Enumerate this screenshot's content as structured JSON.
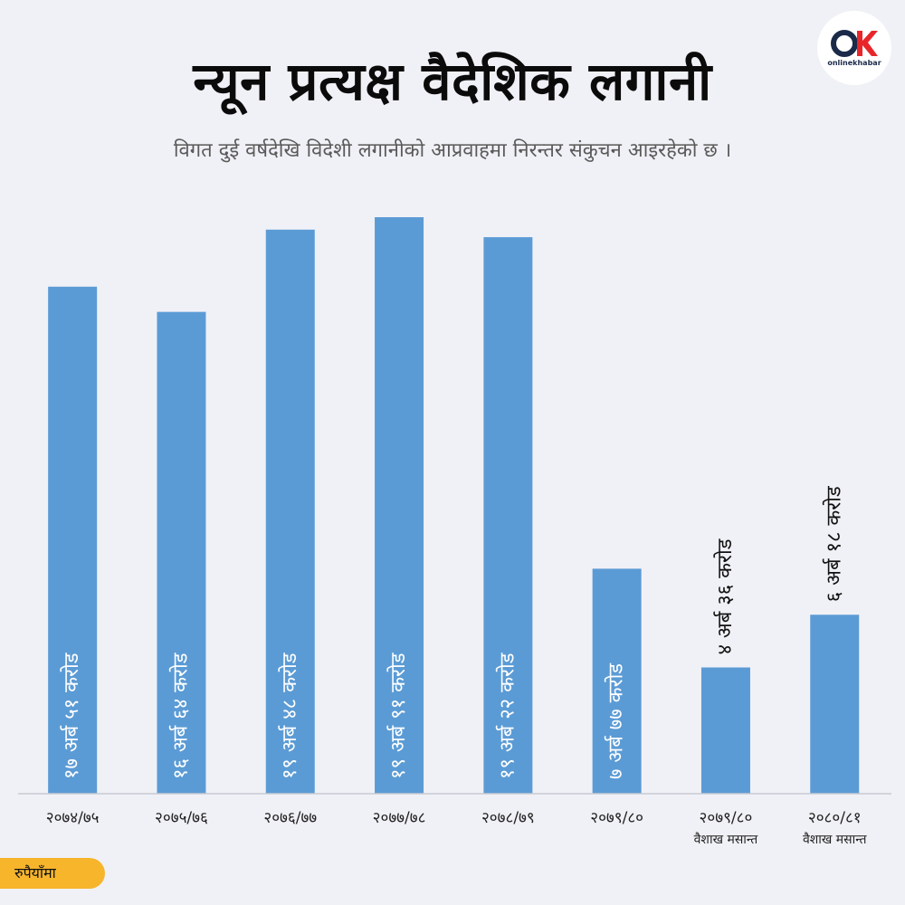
{
  "header": {
    "title": "न्यून प्रत्यक्ष वैदेशिक लगानी",
    "subtitle": "विगत दुई वर्षदेखि विदेशी लगानीको आप्रवाहमा निरन्तर संकुचन आइरहेको छ ।"
  },
  "logo": {
    "text": "onlinekhabar",
    "icon": "onlinekhabar-logo"
  },
  "unit_label": "रुपैयाँमा",
  "colors": {
    "bar": "#5b9bd5",
    "background": "#f0f1f6",
    "unit_tag": "#f7b52c"
  },
  "chart_data": {
    "type": "bar",
    "categories": [
      "२०७४/७५",
      "२०७५/७६",
      "२०७६/७७",
      "२०७७/७८",
      "२०७८/७९",
      "२०७९/८०",
      "२०७९/८०",
      "२०८०/८१"
    ],
    "category_sublabels": [
      "",
      "",
      "",
      "",
      "",
      "",
      "वैशाख मसान्त",
      "वैशाख मसान्त"
    ],
    "values": [
      17.51,
      16.64,
      19.48,
      19.91,
      19.22,
      7.77,
      4.36,
      6.18
    ],
    "value_labels": [
      "१७ अर्ब ५१ करोड",
      "१६ अर्ब ६४ करोड",
      "१९ अर्ब ४८ करोड",
      "१९ अर्ब ९१ करोड",
      "१९ अर्ब २२ करोड",
      "७ अर्ब ७७ करोड",
      "४ अर्ब ३६ करोड",
      "६ अर्ब १८ करोड"
    ],
    "label_inside": [
      true,
      true,
      true,
      true,
      true,
      true,
      false,
      false
    ],
    "ylim": [
      0,
      20
    ]
  }
}
